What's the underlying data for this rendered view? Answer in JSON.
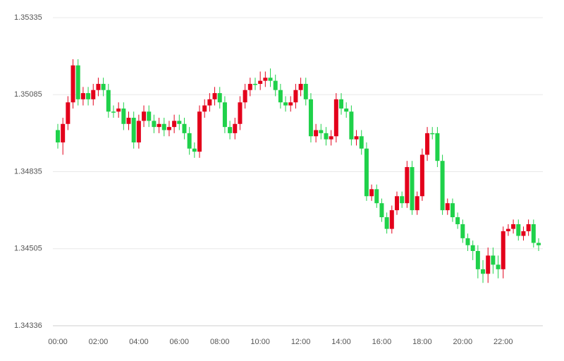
{
  "chart_data": {
    "type": "candlestick",
    "categories": [
      "00:00",
      null,
      null,
      null,
      null,
      null,
      null,
      null,
      "02:00",
      null,
      null,
      null,
      null,
      null,
      null,
      null,
      "04:00",
      null,
      null,
      null,
      null,
      null,
      null,
      null,
      "06:00",
      null,
      null,
      null,
      null,
      null,
      null,
      null,
      "08:00",
      null,
      null,
      null,
      null,
      null,
      null,
      null,
      "10:00",
      null,
      null,
      null,
      null,
      null,
      null,
      null,
      "12:00",
      null,
      null,
      null,
      null,
      null,
      null,
      null,
      "14:00",
      null,
      null,
      null,
      null,
      null,
      null,
      null,
      "16:00",
      null,
      null,
      null,
      null,
      null,
      null,
      null,
      "18:00",
      null,
      null,
      null,
      null,
      null,
      null,
      null,
      "20:00",
      null,
      null,
      null,
      null,
      null,
      null,
      null,
      "22:00",
      null,
      null,
      null,
      null,
      null,
      null,
      null
    ],
    "open": [
      1.3497,
      1.3493,
      1.3499,
      1.3506,
      1.3518,
      1.3507,
      1.3509,
      1.3507,
      1.351,
      1.3512,
      1.351,
      1.3503,
      1.3503,
      1.3504,
      1.3499,
      1.3501,
      1.3493,
      1.35,
      1.3503,
      1.35,
      1.3498,
      1.3499,
      1.3497,
      1.3498,
      1.35,
      1.3499,
      1.3496,
      1.3491,
      1.349,
      1.3503,
      1.3505,
      1.3507,
      1.3509,
      1.3506,
      1.3498,
      1.3496,
      1.3499,
      1.3506,
      1.351,
      1.3512,
      1.3512,
      1.3513,
      1.3514,
      1.3513,
      1.351,
      1.3506,
      1.3505,
      1.3506,
      1.351,
      1.3512,
      1.3507,
      1.3495,
      1.3497,
      1.3496,
      1.3494,
      1.3495,
      1.3507,
      1.3504,
      1.3503,
      1.3494,
      1.3495,
      1.3491,
      1.3473,
      1.3476,
      1.347,
      1.3464,
      1.3459,
      1.3467,
      1.3473,
      1.347,
      1.3485,
      1.3467,
      1.3473,
      1.3489,
      1.3496,
      1.3496,
      1.3487,
      1.3467,
      1.347,
      1.3464,
      1.3461,
      1.3455,
      1.3452,
      1.345,
      1.3446,
      1.3445,
      1.3449,
      1.3447,
      1.3446,
      1.3458,
      1.3459,
      1.3461,
      1.3456,
      1.3458,
      1.3461,
      1.3453
    ],
    "high": [
      1.3499,
      1.3501,
      1.3508,
      1.352,
      1.352,
      1.3511,
      1.3511,
      1.3512,
      1.3514,
      1.3514,
      1.3512,
      1.3505,
      1.3506,
      1.3506,
      1.3503,
      1.3503,
      1.3502,
      1.3505,
      1.3505,
      1.3502,
      1.3501,
      1.3501,
      1.35,
      1.3502,
      1.3502,
      1.3501,
      1.3498,
      1.3493,
      1.3505,
      1.3507,
      1.3509,
      1.3511,
      1.3511,
      1.3508,
      1.35,
      1.3501,
      1.3508,
      1.3512,
      1.3514,
      1.3514,
      1.3516,
      1.3516,
      1.3517,
      1.3515,
      1.3512,
      1.3508,
      1.3508,
      1.3512,
      1.3514,
      1.3514,
      1.3509,
      1.3499,
      1.3499,
      1.3498,
      1.3497,
      1.3509,
      1.3509,
      1.3506,
      1.3505,
      1.3497,
      1.3497,
      1.3493,
      1.3478,
      1.3478,
      1.3472,
      1.3466,
      1.3469,
      1.3475,
      1.3475,
      1.3487,
      1.3487,
      1.3475,
      1.3491,
      1.3498,
      1.3498,
      1.3498,
      1.3489,
      1.3472,
      1.3472,
      1.3466,
      1.3463,
      1.3457,
      1.3454,
      1.3452,
      1.3448,
      1.3451,
      1.3451,
      1.3449,
      1.346,
      1.3461,
      1.3463,
      1.3463,
      1.346,
      1.3463,
      1.3463,
      1.3455
    ],
    "low": [
      1.3491,
      1.3489,
      1.3497,
      1.3504,
      1.3505,
      1.3505,
      1.3505,
      1.3505,
      1.3508,
      1.3508,
      1.3501,
      1.3501,
      1.3501,
      1.3497,
      1.3497,
      1.3491,
      1.3491,
      1.3498,
      1.3498,
      1.3496,
      1.3496,
      1.3495,
      1.3495,
      1.3496,
      1.3497,
      1.3494,
      1.3489,
      1.3488,
      1.3488,
      1.3501,
      1.3503,
      1.3505,
      1.3504,
      1.3496,
      1.3494,
      1.3494,
      1.3497,
      1.3504,
      1.3508,
      1.351,
      1.351,
      1.3511,
      1.3511,
      1.3508,
      1.3504,
      1.3503,
      1.3503,
      1.3504,
      1.3508,
      1.3505,
      1.3493,
      1.3493,
      1.3494,
      1.3492,
      1.3492,
      1.3493,
      1.3502,
      1.3501,
      1.3492,
      1.3492,
      1.3489,
      1.3471,
      1.3471,
      1.3468,
      1.3462,
      1.3457,
      1.3457,
      1.3465,
      1.3468,
      1.3468,
      1.3465,
      1.3465,
      1.3471,
      1.3487,
      1.3494,
      1.3485,
      1.3465,
      1.3465,
      1.3462,
      1.3459,
      1.3453,
      1.345,
      1.3448,
      1.3444,
      1.3443,
      1.3443,
      1.3445,
      1.3444,
      1.3444,
      1.3456,
      1.3457,
      1.3454,
      1.3454,
      1.3456,
      1.3451,
      1.345
    ],
    "close": [
      1.3493,
      1.3499,
      1.3506,
      1.3518,
      1.3507,
      1.3509,
      1.3507,
      1.351,
      1.3512,
      1.351,
      1.3503,
      1.3503,
      1.3504,
      1.3499,
      1.3501,
      1.3493,
      1.35,
      1.3503,
      1.35,
      1.3498,
      1.3499,
      1.3497,
      1.3498,
      1.35,
      1.3499,
      1.3496,
      1.3491,
      1.349,
      1.3503,
      1.3505,
      1.3507,
      1.3509,
      1.3506,
      1.3498,
      1.3496,
      1.3499,
      1.3506,
      1.351,
      1.3512,
      1.3512,
      1.3513,
      1.3514,
      1.3513,
      1.351,
      1.3506,
      1.3505,
      1.3506,
      1.351,
      1.3512,
      1.3507,
      1.3495,
      1.3497,
      1.3496,
      1.3494,
      1.3495,
      1.3507,
      1.3504,
      1.3503,
      1.3494,
      1.3495,
      1.3491,
      1.3473,
      1.3476,
      1.347,
      1.3464,
      1.3459,
      1.3467,
      1.3473,
      1.347,
      1.3485,
      1.3467,
      1.3473,
      1.3489,
      1.3496,
      1.3496,
      1.3487,
      1.3467,
      1.347,
      1.3464,
      1.3461,
      1.3455,
      1.3452,
      1.345,
      1.3446,
      1.3445,
      1.3449,
      1.3447,
      1.3446,
      1.3458,
      1.3459,
      1.3461,
      1.3456,
      1.3458,
      1.3461,
      1.3453,
      1.3452
    ],
    "up_color": "#e3001b",
    "down_color": "#1fd14a",
    "ylim": [
      1.34336,
      1.35335
    ],
    "yticks": [
      1.34336,
      1.34505,
      1.34835,
      1.35085,
      1.35335
    ],
    "grid": true
  }
}
